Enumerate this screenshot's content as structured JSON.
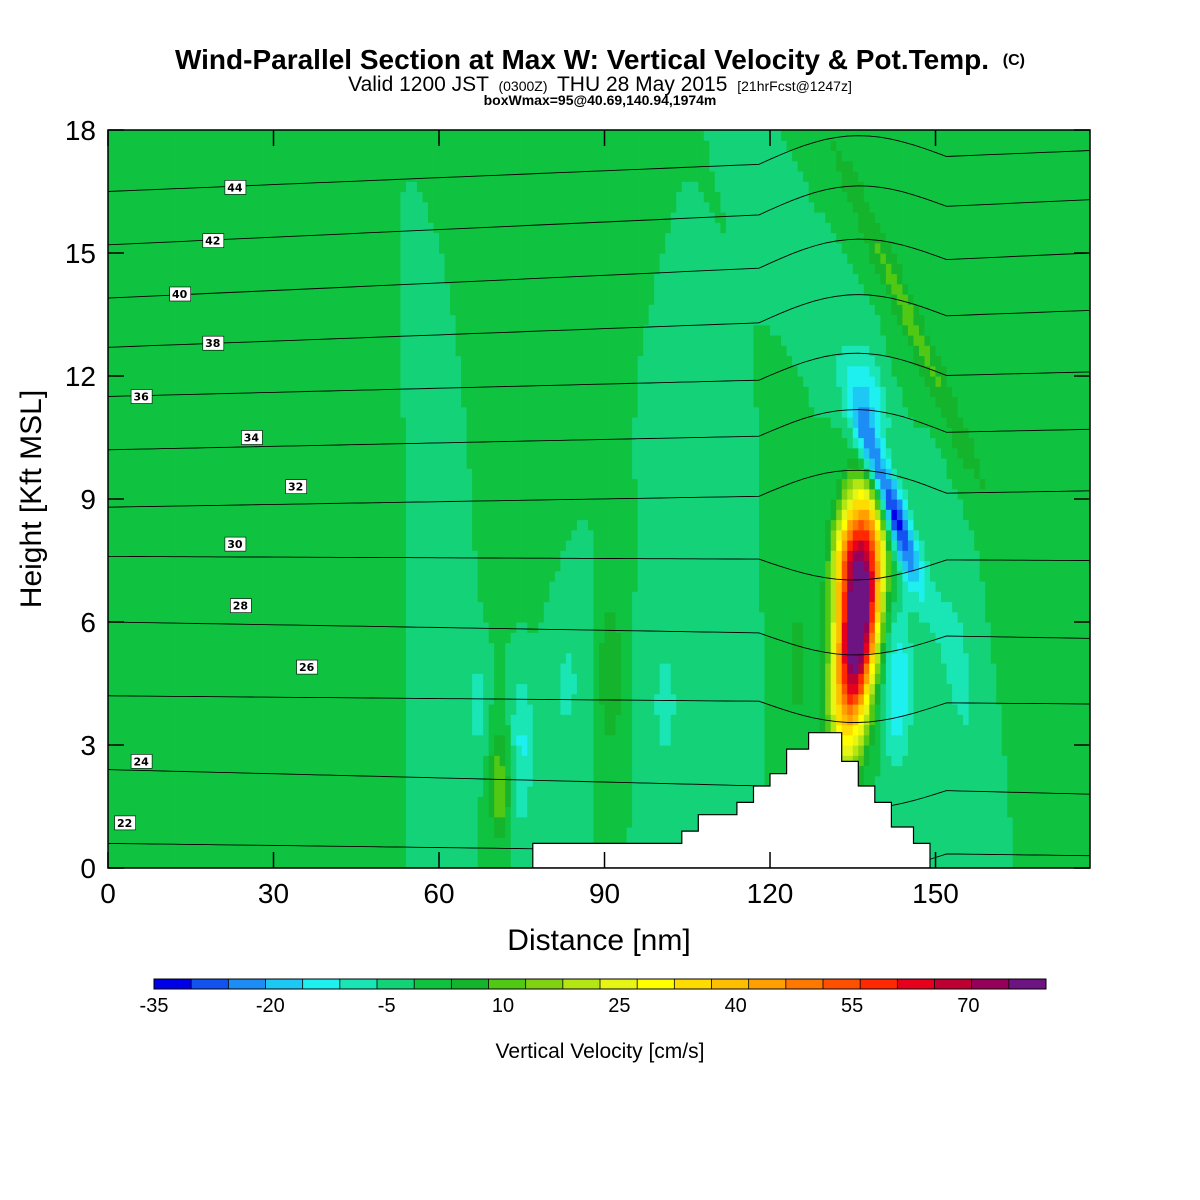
{
  "title": "Wind-Parallel Section at Max W: Vertical Velocity & Pot.Temp.",
  "copyright": "(C)",
  "valid_prefix": "Valid 1200 JST",
  "valid_zulu": "(0300Z)",
  "valid_date": "THU 28 May 2015",
  "forecast": "[21hrFcst@1247z]",
  "box_info": "boxWmax=95@40.69,140.94,1974m",
  "chart_data": {
    "type": "heatmap",
    "xlabel": "Distance [nm]",
    "ylabel": "Height [Kft MSL]",
    "xlim": [
      0,
      178
    ],
    "ylim": [
      0,
      18
    ],
    "xticks": [
      0,
      30,
      60,
      90,
      120,
      150
    ],
    "yticks": [
      0,
      3,
      6,
      9,
      12,
      15,
      18
    ],
    "colorbar": {
      "title": "Vertical Velocity [cm/s]",
      "min": -35,
      "max": 80,
      "step": 5,
      "tick_values": [
        -35,
        -20,
        -5,
        10,
        25,
        40,
        55,
        70
      ],
      "tick_labels": [
        "-35",
        "-20",
        "-5",
        "10",
        "25",
        "40",
        "55",
        "70"
      ],
      "colors": [
        "#0000e8",
        "#1452f0",
        "#1e8cf5",
        "#1ec8f5",
        "#1ef0f0",
        "#19e6b4",
        "#14d278",
        "#0fc341",
        "#14b42d",
        "#50c814",
        "#82d214",
        "#b4e614",
        "#e6f514",
        "#ffff00",
        "#ffdc00",
        "#ffbe00",
        "#ffa000",
        "#ff7800",
        "#ff5000",
        "#ff2800",
        "#e6001e",
        "#be0032",
        "#96005a",
        "#6e1482"
      ]
    },
    "terrain_profile": [
      [
        77,
        0
      ],
      [
        77,
        0.6
      ],
      [
        104,
        0.6
      ],
      [
        104,
        0.9
      ],
      [
        107,
        0.9
      ],
      [
        107,
        1.3
      ],
      [
        114,
        1.3
      ],
      [
        114,
        1.6
      ],
      [
        117,
        1.6
      ],
      [
        117,
        2.0
      ],
      [
        120,
        2.0
      ],
      [
        120,
        2.3
      ],
      [
        123,
        2.3
      ],
      [
        123,
        2.9
      ],
      [
        127,
        2.9
      ],
      [
        127,
        3.3
      ],
      [
        133,
        3.3
      ],
      [
        133,
        2.6
      ],
      [
        136,
        2.6
      ],
      [
        136,
        2.0
      ],
      [
        139,
        2.0
      ],
      [
        139,
        1.6
      ],
      [
        142,
        1.6
      ],
      [
        142,
        1.0
      ],
      [
        146,
        1.0
      ],
      [
        146,
        0.6
      ],
      [
        149,
        0.6
      ],
      [
        149,
        0
      ],
      [
        77,
        0
      ]
    ],
    "w_features": [
      {
        "x": 136,
        "y": 6.0,
        "sx": 3.6,
        "sy": 2.8,
        "amp": 95,
        "tilt": 0.7
      },
      {
        "x": 134,
        "y": 7.8,
        "sx": 3.0,
        "sy": 1.5,
        "amp": 28,
        "tilt": 0.6
      },
      {
        "x": 141,
        "y": 9.2,
        "sx": 2.4,
        "sy": 2.2,
        "amp": -40,
        "tilt": -2.5
      },
      {
        "x": 138.5,
        "y": 11.5,
        "sx": 3.0,
        "sy": 1.3,
        "amp": -14,
        "tilt": -2.0
      },
      {
        "x": 143,
        "y": 4.5,
        "sx": 2.8,
        "sy": 2.0,
        "amp": -15,
        "tilt": 0.0
      },
      {
        "x": 145,
        "y": 13.5,
        "sx": 2.4,
        "sy": 4.5,
        "amp": 12,
        "tilt": -3.2
      },
      {
        "x": 154,
        "y": 5.0,
        "sx": 3.0,
        "sy": 2.5,
        "amp": -7,
        "tilt": -1.0
      },
      {
        "x": 71,
        "y": 2.0,
        "sx": 1.8,
        "sy": 1.3,
        "amp": 14,
        "tilt": 0.0
      },
      {
        "x": 75,
        "y": 3.0,
        "sx": 2.0,
        "sy": 2.0,
        "amp": -11,
        "tilt": 0.0
      },
      {
        "x": 67,
        "y": 4.0,
        "sx": 1.6,
        "sy": 1.2,
        "amp": -8,
        "tilt": 0.0
      },
      {
        "x": 91,
        "y": 4.7,
        "sx": 2.6,
        "sy": 2.0,
        "amp": 9,
        "tilt": 0.0
      },
      {
        "x": 83,
        "y": 4.5,
        "sx": 4.5,
        "sy": 2.2,
        "amp": -6,
        "tilt": 0.0
      },
      {
        "x": 101,
        "y": 4.0,
        "sx": 3.8,
        "sy": 2.2,
        "amp": -6,
        "tilt": 0.0
      },
      {
        "x": 112,
        "y": 3.8,
        "sx": 2.2,
        "sy": 1.8,
        "amp": -5,
        "tilt": 0.0
      },
      {
        "x": 125,
        "y": 5.0,
        "sx": 2.0,
        "sy": 2.0,
        "amp": 7,
        "tilt": 0.0
      },
      {
        "x": 13,
        "y": 12.0,
        "sx": 7.0,
        "sy": 6.5,
        "amp": 5,
        "tilt": -0.8
      },
      {
        "x": 40,
        "y": 9.0,
        "sx": 8.0,
        "sy": 4.0,
        "amp": 4.5,
        "tilt": -0.6
      },
      {
        "x": 73,
        "y": 12.0,
        "sx": 6.0,
        "sy": 6.0,
        "amp": 4,
        "tilt": -0.7
      },
      {
        "x": 170,
        "y": 9.0,
        "sx": 6.0,
        "sy": 5.0,
        "amp": 4,
        "tilt": -0.5
      },
      {
        "x": 60,
        "y": 8.0,
        "sx": 4.0,
        "sy": 4.0,
        "amp": -3,
        "tilt": 0.0
      }
    ],
    "theta_contours": [
      {
        "value": 22,
        "label": "22",
        "x": 3,
        "y": 1.1,
        "label_x": 3,
        "h_west": 0.6,
        "h_east": 0.3
      },
      {
        "value": 24,
        "label": "24",
        "x": 6,
        "y": 2.6,
        "label_x": 6,
        "h_west": 2.4,
        "h_east": 1.8
      },
      {
        "value": 26,
        "label": "26",
        "x": 36,
        "y": 4.9,
        "label_x": 36,
        "h_west": 4.2,
        "h_east": 4.0
      },
      {
        "value": 28,
        "label": "28",
        "x": 24,
        "y": 6.4,
        "label_x": 24,
        "h_west": 6.0,
        "h_east": 5.6
      },
      {
        "value": 30,
        "label": "30",
        "x": 23,
        "y": 7.9,
        "label_x": 23,
        "h_west": 7.6,
        "h_east": 7.5
      },
      {
        "value": 32,
        "label": "32",
        "x": 34,
        "y": 9.3,
        "label_x": 34,
        "h_west": 8.8,
        "h_east": 9.2
      },
      {
        "value": 34,
        "label": "34",
        "x": 26,
        "y": 10.5,
        "label_x": 26,
        "h_west": 10.2,
        "h_east": 10.7
      },
      {
        "value": 36,
        "label": "36",
        "x": 6,
        "y": 11.5,
        "label_x": 6,
        "h_west": 11.5,
        "h_east": 12.1
      },
      {
        "value": 38,
        "label": "38",
        "x": 19,
        "y": 12.8,
        "label_x": 19,
        "h_west": 12.7,
        "h_east": 13.6
      },
      {
        "value": 40,
        "label": "40",
        "x": 13,
        "y": 14.0,
        "label_x": 13,
        "h_west": 13.9,
        "h_east": 15.0
      },
      {
        "value": 42,
        "label": "42",
        "x": 19,
        "y": 15.3,
        "label_x": 19,
        "h_west": 15.2,
        "h_east": 16.3
      },
      {
        "value": 44,
        "label": "44",
        "x": 23,
        "y": 16.6,
        "label_x": 23,
        "h_west": 16.5,
        "h_east": 17.5
      }
    ]
  }
}
